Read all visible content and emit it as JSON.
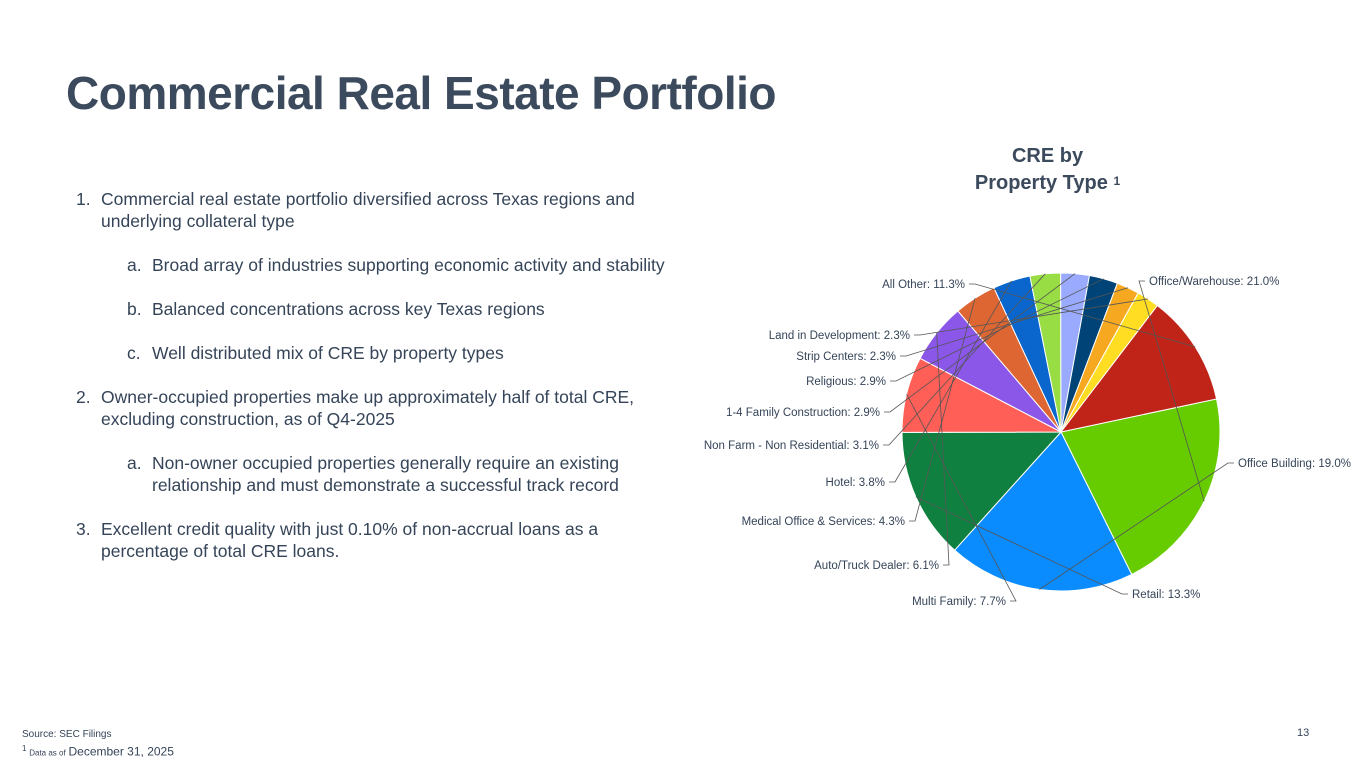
{
  "slide": {
    "title": "Commercial Real Estate Portfolio",
    "page_number": "13"
  },
  "bullets": [
    {
      "level": 1,
      "marker": "1.",
      "text": "Commercial real estate portfolio diversified across Texas regions and underlying collateral type"
    },
    {
      "level": 2,
      "marker": "a.",
      "text": "Broad array of industries supporting economic activity and stability"
    },
    {
      "level": 2,
      "marker": "b.",
      "text": "Balanced concentrations across key Texas regions"
    },
    {
      "level": 2,
      "marker": "c.",
      "text": "Well distributed mix of CRE by property types"
    },
    {
      "level": 1,
      "marker": "2.",
      "text": "Owner-occupied properties make up approximately half of total CRE, excluding construction, as of Q4-2025"
    },
    {
      "level": 2,
      "marker": "a.",
      "text": "Non-owner occupied properties generally require an existing relationship and must demonstrate a successful track record"
    },
    {
      "level": 1,
      "marker": "3.",
      "text": "Excellent credit quality with just 0.10% of non-accrual loans as a percentage of total CRE loans."
    }
  ],
  "footnotes": {
    "source": "Source: SEC Filings",
    "note_marker": "1",
    "note_prefix": "Data as of",
    "note_date": "December 31, 2025"
  },
  "chart_data": {
    "type": "pie",
    "title_line1": "CRE by",
    "title_line2": "Property Type",
    "title_superscript": "1",
    "slices": [
      {
        "label": "Office/Warehouse",
        "value": 21.0,
        "display": "Office/Warehouse: 21.0%",
        "color": "#66cc00"
      },
      {
        "label": "Office Building",
        "value": 19.0,
        "display": "Office Building: 19.0%",
        "color": "#0a8cff"
      },
      {
        "label": "Retail",
        "value": 13.3,
        "display": "Retail: 13.3%",
        "color": "#0f8040"
      },
      {
        "label": "Multi Family",
        "value": 7.7,
        "display": "Multi Family: 7.7%",
        "color": "#ff5f57"
      },
      {
        "label": "Auto/Truck Dealer",
        "value": 6.1,
        "display": "Auto/Truck Dealer: 6.1%",
        "color": "#8b57e8"
      },
      {
        "label": "Medical Office & Services",
        "value": 4.3,
        "display": "Medical Office & Services: 4.3%",
        "color": "#dd6633"
      },
      {
        "label": "Hotel",
        "value": 3.8,
        "display": "Hotel: 3.8%",
        "color": "#0a66cc"
      },
      {
        "label": "Non Farm - Non Residential",
        "value": 3.1,
        "display": "Non Farm - Non Residential: 3.1%",
        "color": "#99dd44"
      },
      {
        "label": "1-4 Family Construction",
        "value": 2.9,
        "display": "1-4 Family Construction: 2.9%",
        "color": "#99aaff"
      },
      {
        "label": "Religious",
        "value": 2.9,
        "display": "Religious: 2.9%",
        "color": "#004477"
      },
      {
        "label": "Strip Centers",
        "value": 2.3,
        "display": "Strip Centers: 2.3%",
        "color": "#f6a821"
      },
      {
        "label": "Land in Development",
        "value": 2.3,
        "display": "Land in Development: 2.3%",
        "color": "#ffdd22"
      },
      {
        "label": "All Other",
        "value": 11.3,
        "display": "All Other: 11.3%",
        "color": "#c02418"
      }
    ]
  }
}
